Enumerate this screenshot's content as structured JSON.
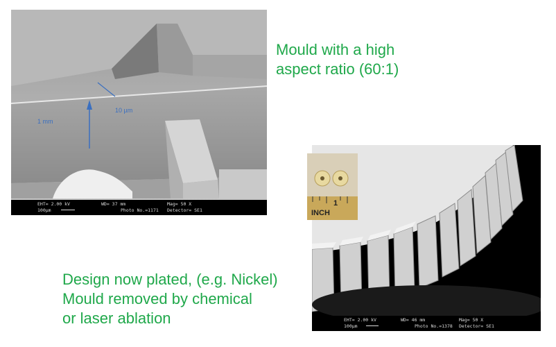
{
  "text_top": {
    "line1": "Mould with a high",
    "line2": "aspect ratio (60:1)"
  },
  "text_bottom": {
    "line1": "Design now plated, (e.g. Nickel)",
    "line2": "Mould removed by chemical",
    "line3": "or laser ablation"
  },
  "sem_top": {
    "annotation_height": "1 mm",
    "annotation_width": "10 µm",
    "eht": "EHT= 2.00 kV",
    "wd": "WD= 37 mm",
    "mag": "Mag= 50 X",
    "scale": "100µm",
    "photo_no": "Photo No.=1171",
    "detector": "Detector= SE1"
  },
  "sem_gear": {
    "eht": "EHT= 2.00 kV",
    "wd": "WD= 46 mm",
    "mag": "Mag= 50 X",
    "scale": "100µm",
    "photo_no": "Photo No.=1378",
    "detector": "Detector= SE1"
  },
  "photo_inset": {
    "ruler_number": "1",
    "ruler_unit": "INCH"
  }
}
